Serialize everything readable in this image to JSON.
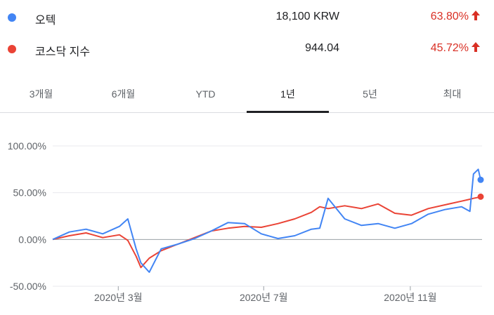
{
  "colors": {
    "blue": "#4285f4",
    "red": "#ea4335",
    "up": "#d93025",
    "grid": "#e8eaed",
    "zero": "#9aa0a6"
  },
  "legend": [
    {
      "name": "오텍",
      "value": "18,100 KRW",
      "change": "63.80%",
      "direction": "up",
      "color": "#4285f4"
    },
    {
      "name": "코스닥 지수",
      "value": "944.04",
      "change": "45.72%",
      "direction": "up",
      "color": "#ea4335"
    }
  ],
  "tabs": [
    {
      "label": "3개월",
      "active": false
    },
    {
      "label": "6개월",
      "active": false
    },
    {
      "label": "YTD",
      "active": false
    },
    {
      "label": "1년",
      "active": true
    },
    {
      "label": "5년",
      "active": false
    },
    {
      "label": "최대",
      "active": false
    }
  ],
  "chart_data": {
    "type": "line",
    "ylim": [
      -50,
      100
    ],
    "y_ticks": [
      100,
      50,
      0,
      -50
    ],
    "y_tick_labels": [
      "100.00%",
      "50.00%",
      "0.00%",
      "-50.00%"
    ],
    "x_range": [
      "2020-01-06",
      "2020-12-30"
    ],
    "x_ticks": [
      "2020-03-01",
      "2020-07-01",
      "2020-11-01"
    ],
    "x_tick_labels": [
      "2020년 3월",
      "2020년 7월",
      "2020년 11월"
    ],
    "grid": true,
    "series": [
      {
        "name": "오텍",
        "color": "#4285f4",
        "x": [
          "2020-01-06",
          "2020-01-20",
          "2020-02-03",
          "2020-02-17",
          "2020-03-02",
          "2020-03-09",
          "2020-03-16",
          "2020-03-20",
          "2020-03-27",
          "2020-04-06",
          "2020-04-20",
          "2020-05-04",
          "2020-05-18",
          "2020-06-01",
          "2020-06-15",
          "2020-06-29",
          "2020-07-13",
          "2020-07-27",
          "2020-08-10",
          "2020-08-17",
          "2020-08-24",
          "2020-09-07",
          "2020-09-21",
          "2020-10-05",
          "2020-10-19",
          "2020-11-02",
          "2020-11-16",
          "2020-11-30",
          "2020-12-14",
          "2020-12-21",
          "2020-12-24",
          "2020-12-28",
          "2020-12-30"
        ],
        "values": [
          0,
          8,
          11,
          6,
          14,
          22,
          -10,
          -25,
          -35,
          -10,
          -5,
          1,
          9,
          18,
          17,
          6,
          1,
          4,
          11,
          12,
          44,
          22,
          15,
          17,
          12,
          17,
          27,
          32,
          35,
          30,
          70,
          75,
          63.8
        ]
      },
      {
        "name": "코스닥 지수",
        "color": "#ea4335",
        "x": [
          "2020-01-06",
          "2020-01-20",
          "2020-02-03",
          "2020-02-17",
          "2020-03-02",
          "2020-03-09",
          "2020-03-16",
          "2020-03-20",
          "2020-03-27",
          "2020-04-06",
          "2020-04-20",
          "2020-05-04",
          "2020-05-18",
          "2020-06-01",
          "2020-06-15",
          "2020-06-29",
          "2020-07-13",
          "2020-07-27",
          "2020-08-10",
          "2020-08-17",
          "2020-08-24",
          "2020-09-07",
          "2020-09-21",
          "2020-10-05",
          "2020-10-19",
          "2020-11-02",
          "2020-11-16",
          "2020-11-30",
          "2020-12-14",
          "2020-12-21",
          "2020-12-24",
          "2020-12-28",
          "2020-12-30"
        ],
        "values": [
          0,
          4,
          7,
          2,
          5,
          -1,
          -18,
          -30,
          -20,
          -12,
          -5,
          2,
          9,
          12,
          14,
          13,
          17,
          22,
          29,
          35,
          33,
          36,
          33,
          38,
          28,
          26,
          33,
          37,
          41,
          43,
          44,
          45,
          45.72
        ]
      }
    ]
  }
}
